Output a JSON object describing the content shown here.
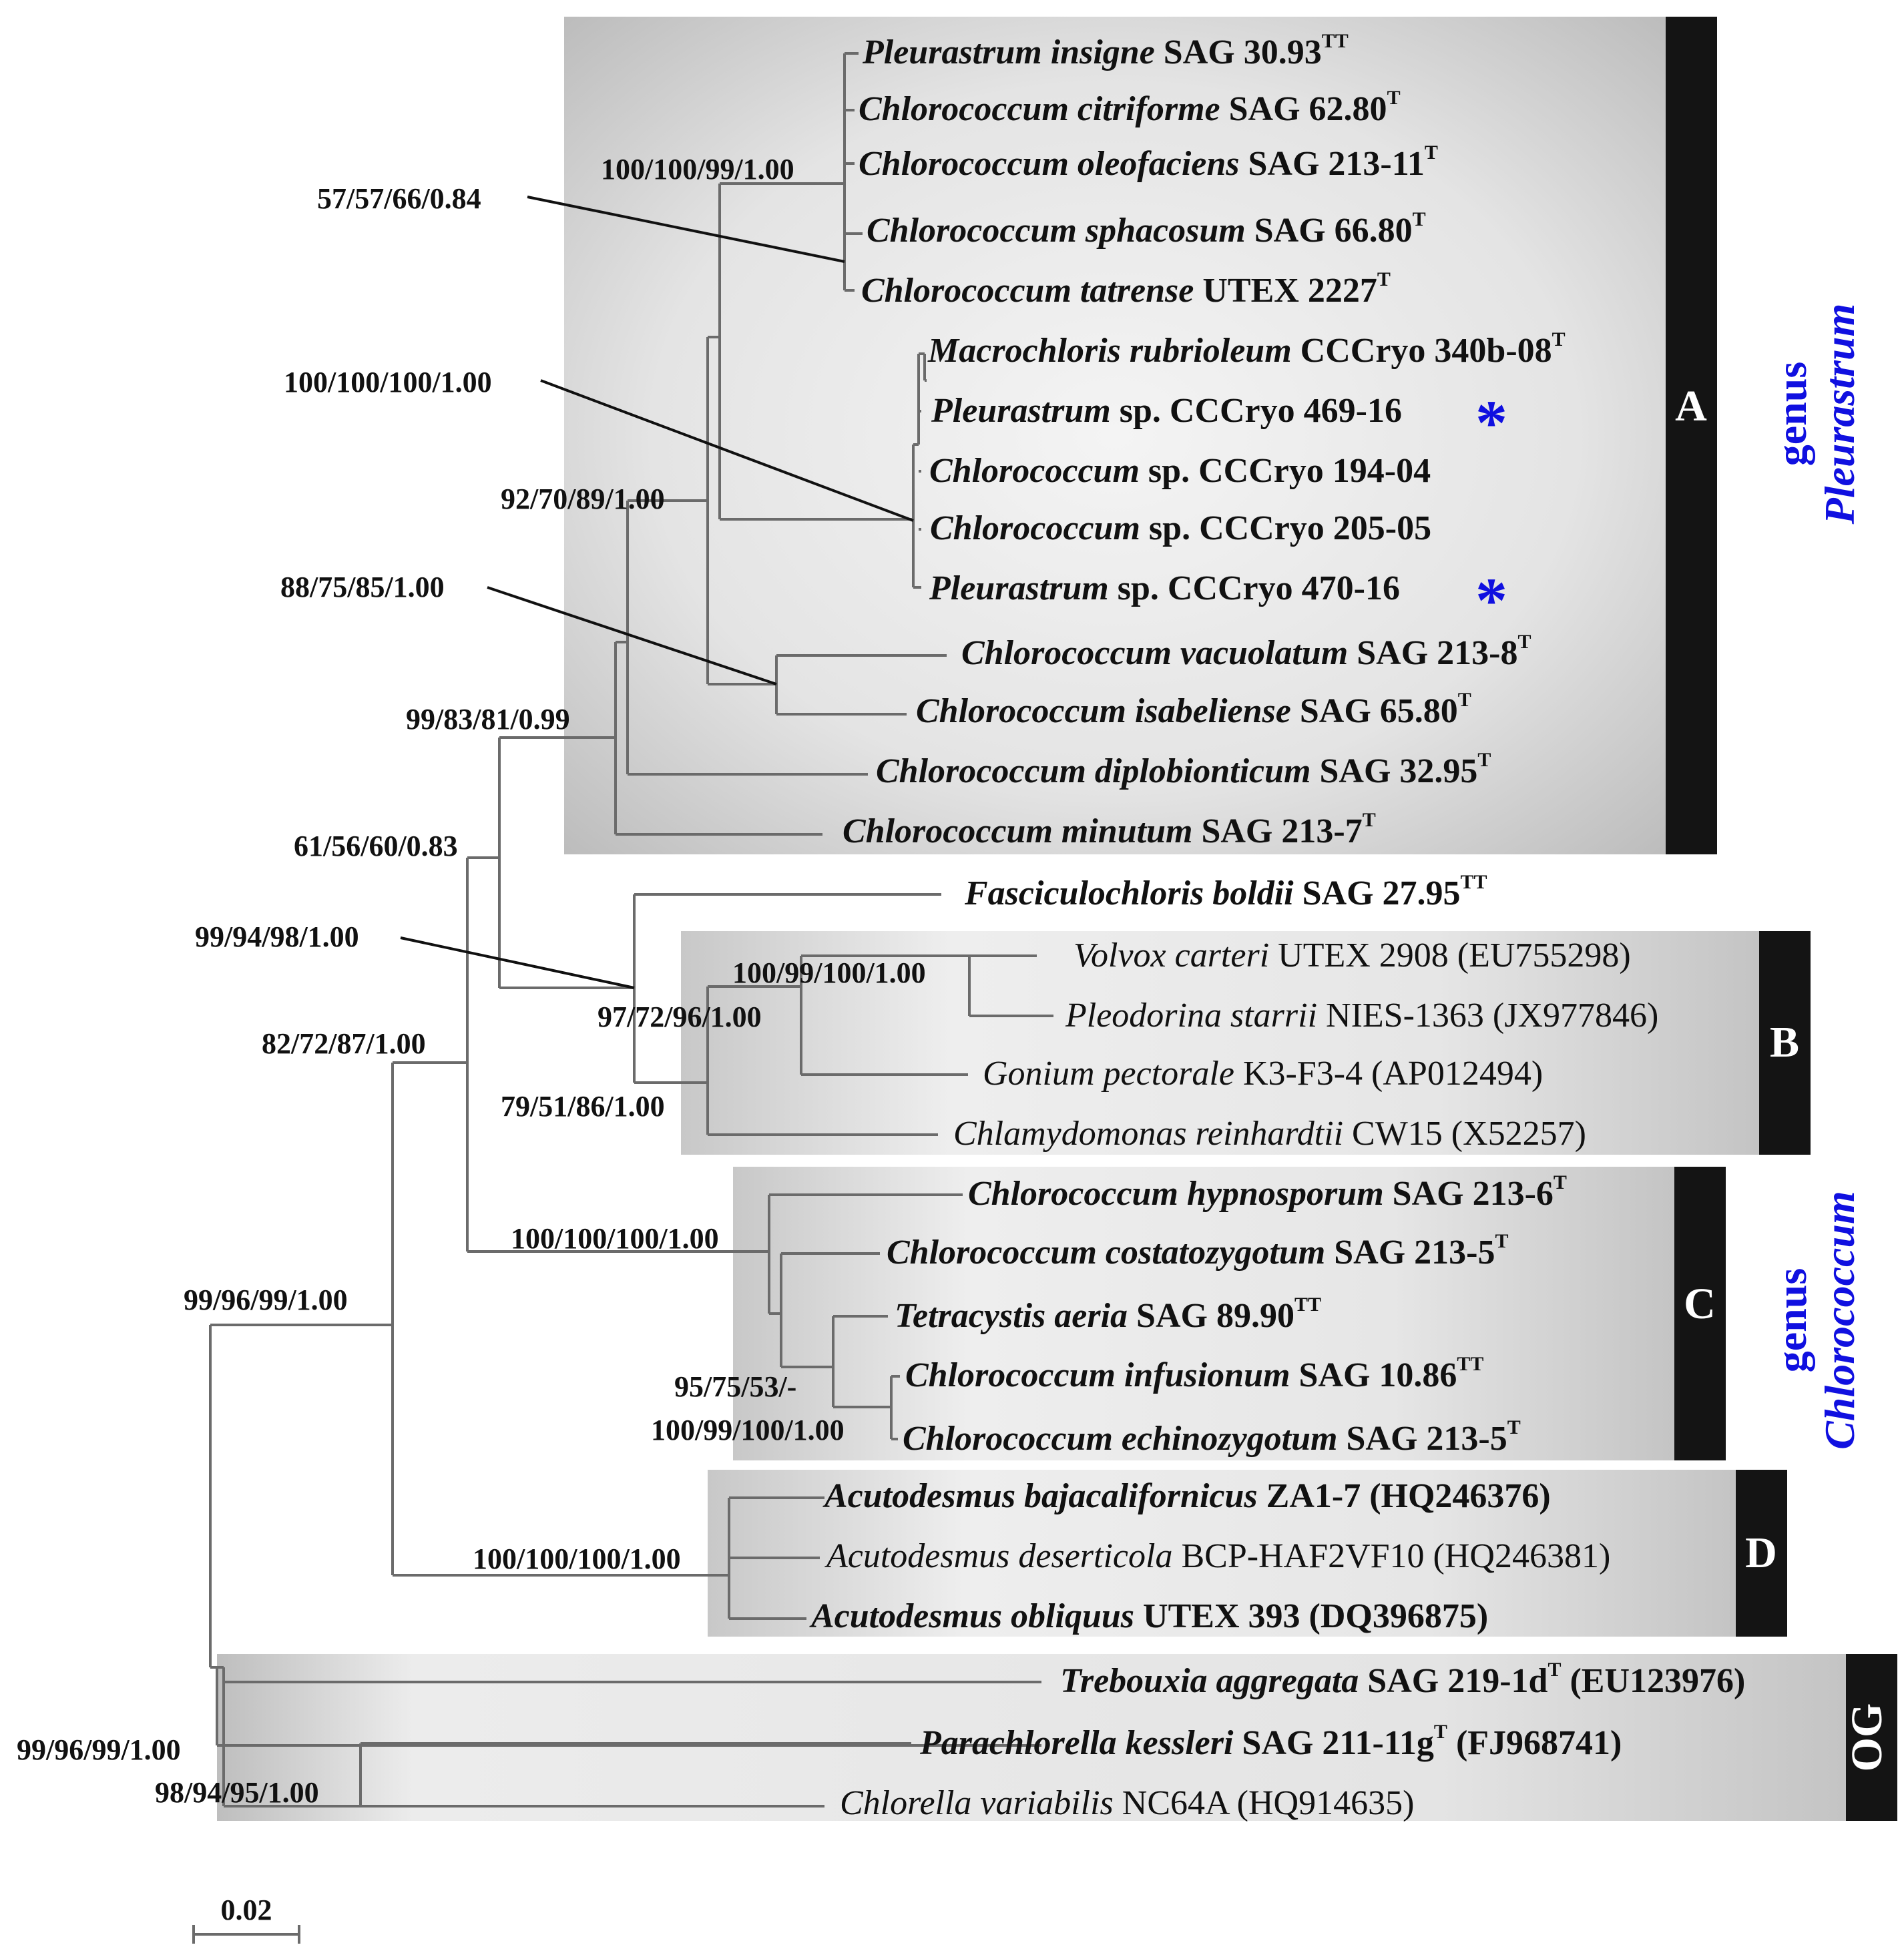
{
  "colors": {
    "branch": "#6b6b6b",
    "text": "#111111",
    "genus": "#1010e0",
    "bar": "#141414",
    "box_edge": "#c4c4c4",
    "box_center": "#f2f2f2"
  },
  "taxa": {
    "t1": {
      "genus": "Pleurastrum insigne",
      "rest": " SAG 30.93",
      "sup": "TT"
    },
    "t2": {
      "genus": "Chlorococcum citriforme",
      "rest": " SAG 62.80",
      "sup": "T"
    },
    "t3": {
      "genus": "Chlorococcum oleofaciens",
      "rest": " SAG 213-11",
      "sup": "T"
    },
    "t4": {
      "genus": "Chlorococcum sphacosum",
      "rest": " SAG 66.80",
      "sup": "T"
    },
    "t5": {
      "genus": "Chlorococcum tatrense",
      "rest": " UTEX 2227",
      "sup": "T"
    },
    "t6": {
      "genus": "Macrochloris rubrioleum",
      "rest": " CCCryo 340b-08",
      "sup": "T"
    },
    "t7": {
      "genus": "Pleurastrum",
      "rest": " sp. CCCryo 469-16",
      "sup": "",
      "star": "*"
    },
    "t8": {
      "genus": "Chlorococcum",
      "rest": " sp. CCCryo 194-04",
      "sup": ""
    },
    "t9": {
      "genus": "Chlorococcum",
      "rest": " sp. CCCryo 205-05",
      "sup": ""
    },
    "t10": {
      "genus": "Pleurastrum",
      "rest": " sp. CCCryo 470-16",
      "sup": "",
      "star": "*"
    },
    "t11": {
      "genus": "Chlorococcum vacuolatum",
      "rest": " SAG 213-8",
      "sup": "T"
    },
    "t12": {
      "genus": "Chlorococcum isabeliense",
      "rest": " SAG 65.80",
      "sup": "T"
    },
    "t13": {
      "genus": "Chlorococcum diplobionticum",
      "rest": " SAG 32.95",
      "sup": "T"
    },
    "t14": {
      "genus": "Chlorococcum minutum",
      "rest": " SAG 213-7",
      "sup": "T"
    },
    "t15": {
      "genus": "Fasciculochloris boldii",
      "rest": " SAG 27.95",
      "sup": "TT"
    },
    "t16": {
      "genus": "Volvox carteri",
      "rest": " UTEX 2908 (EU755298)",
      "sup": ""
    },
    "t17": {
      "genus": "Pleodorina starrii",
      "rest": " NIES-1363 (JX977846)",
      "sup": ""
    },
    "t18": {
      "genus": "Gonium pectorale",
      "rest": " K3-F3-4 (AP012494)",
      "sup": ""
    },
    "t19": {
      "genus": "Chlamydomonas reinhardtii",
      "rest": " CW15 (X52257)",
      "sup": ""
    },
    "t20": {
      "genus": "Chlorococcum hypnosporum",
      "rest": " SAG 213-6",
      "sup": "T"
    },
    "t21": {
      "genus": "Chlorococcum costatozygotum",
      "rest": " SAG 213-5",
      "sup": "T"
    },
    "t22": {
      "genus": "Tetracystis aeria",
      "rest": " SAG 89.90",
      "sup": "TT"
    },
    "t23": {
      "genus": "Chlorococcum infusionum",
      "rest": " SAG 10.86",
      "sup": "TT"
    },
    "t24": {
      "genus": "Chlorococcum echinozygotum",
      "rest": " SAG 213-5",
      "sup": "T"
    },
    "t25": {
      "genus": "Acutodesmus bajacalifornicus",
      "rest": " ZA1-7 (HQ246376)",
      "sup": ""
    },
    "t26": {
      "genus": "Acutodesmus deserticola",
      "rest": " BCP-HAF2VF10 (HQ246381)",
      "sup": ""
    },
    "t27": {
      "genus": "Acutodesmus obliquus",
      "rest": " UTEX 393 (DQ396875)",
      "sup": ""
    },
    "t28": {
      "genus": "Trebouxia aggregata",
      "rest": " SAG 219-1d",
      "sup": "T",
      "tail": " (EU123976)"
    },
    "t29": {
      "genus": "Parachlorella kessleri",
      "rest": " SAG 211-11g",
      "sup": "T",
      "tail": " (FJ968741)"
    },
    "t30": {
      "genus": "Chlorella variabilis",
      "rest": " NC64A (HQ914635)",
      "sup": ""
    }
  },
  "supports": {
    "s1": "57/57/66/0.84",
    "s2": "100/100/99/1.00",
    "s3": "100/100/100/1.00",
    "s4": "92/70/89/1.00",
    "s5": "88/75/85/1.00",
    "s6": "99/83/81/0.99",
    "s7": "61/56/60/0.83",
    "s8": "99/94/98/1.00",
    "s9": "100/99/100/1.00",
    "s10": "97/72/96/1.00",
    "s11": "82/72/87/1.00",
    "s12": "79/51/86/1.00",
    "s13": "100/100/100/1.00",
    "s14": "95/75/53/-",
    "s15": "100/99/100/1.00",
    "s16": "99/96/99/1.00",
    "s17": "100/100/100/1.00",
    "s18": "99/96/99/1.00",
    "s19": "98/94/95/1.00"
  },
  "clades": {
    "A": "A",
    "B": "B",
    "C": "C",
    "D": "D",
    "OG": "OG"
  },
  "genus_labels": {
    "pleurastrum": {
      "word": "genus",
      "name": "Pleurastrum"
    },
    "chlorococcum": {
      "word": "genus",
      "name": "Chlorococcum"
    }
  },
  "scale_bar": {
    "label": "0.02"
  }
}
